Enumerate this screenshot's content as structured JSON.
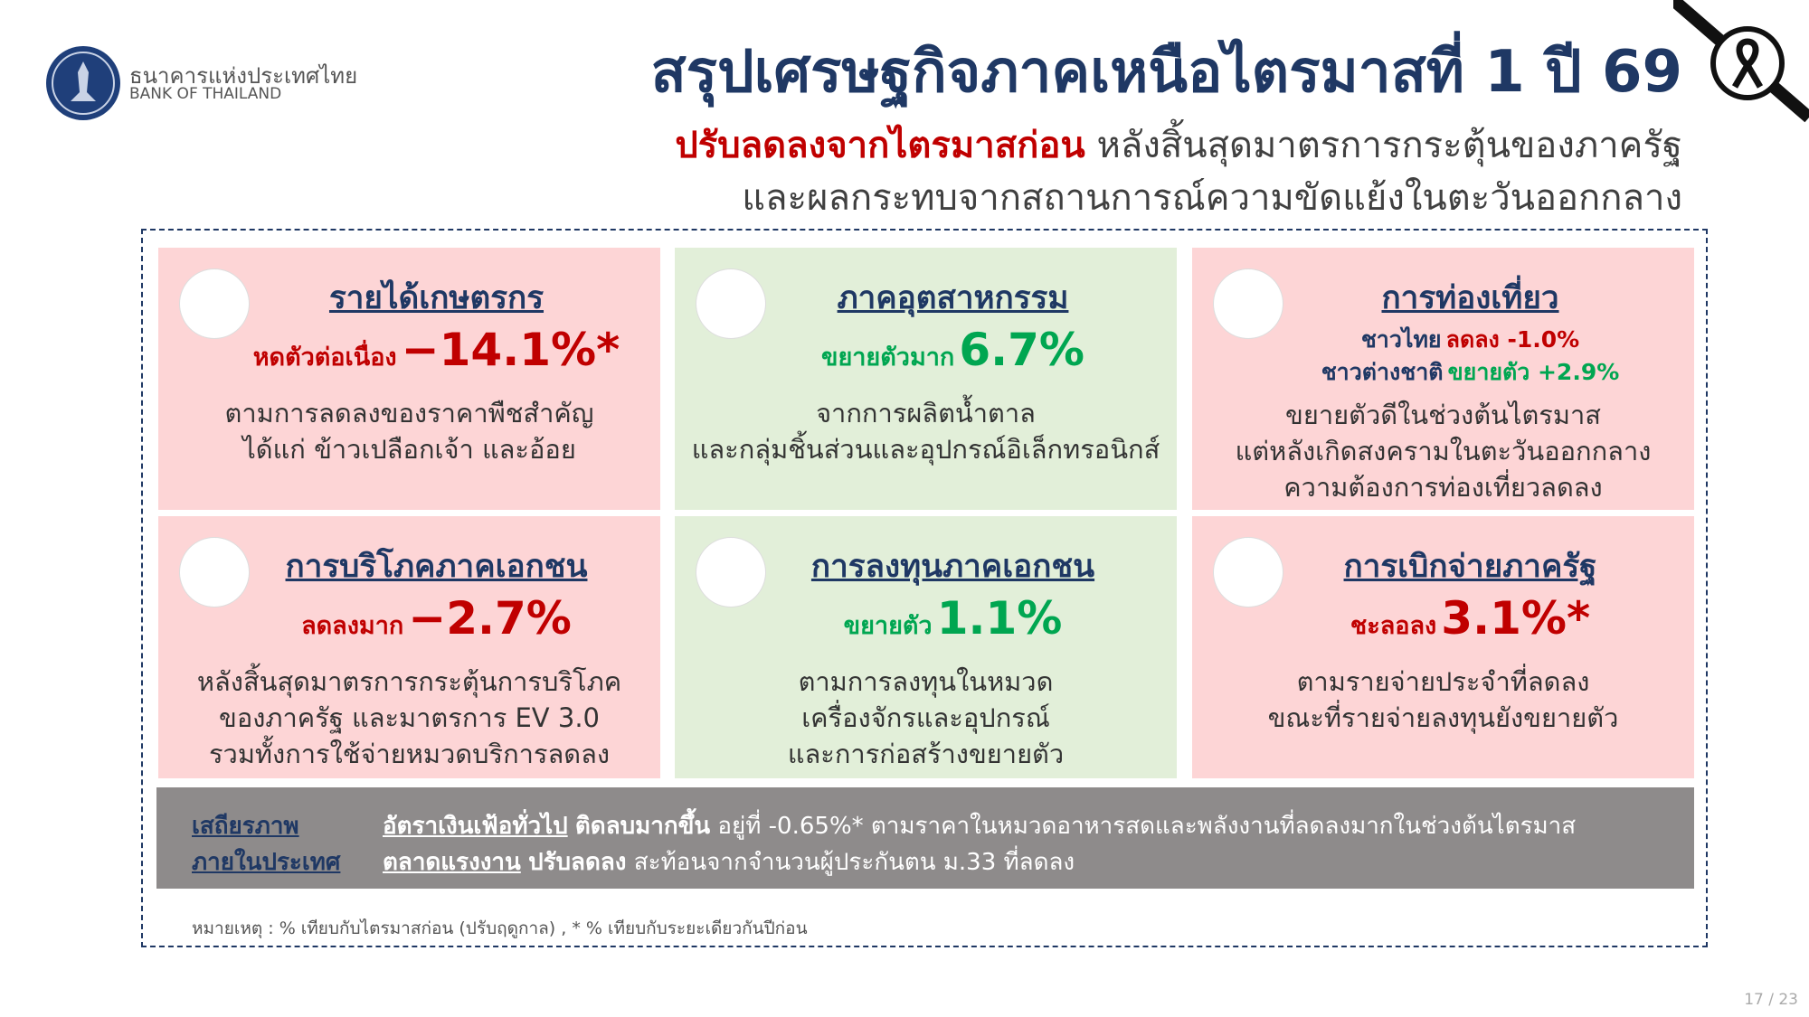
{
  "header": {
    "logo_th": "ธนาคารแห่งประเทศไทย",
    "logo_en": "BANK OF THAILAND",
    "title": "สรุปเศรษฐกิจภาคเหนือไตรมาสที่ 1 ปี 69",
    "subtitle_highlight": "ปรับลดลงจากไตรมาสก่อน",
    "subtitle_rest": "หลังสิ้นสุดมาตรการกระตุ้นของภาครัฐ",
    "subtitle_line2": "และผลกระทบจากสถานการณ์ความขัดแย้งในตะวันออกกลาง"
  },
  "cards": [
    {
      "title": "รายได้เกษตรกร",
      "background": "#fdd5d6",
      "status": [
        {
          "label": "หดตัวต่อเนื่อง",
          "value": "−14.1%*",
          "label_color": "#c00000",
          "color": "#c00000"
        }
      ],
      "description": [
        "ตามการลดลงของราคาพืชสำคัญ",
        "ได้แก่ ข้าวเปลือกเจ้า และอ้อย"
      ]
    },
    {
      "title": "ภาคอุตสาหกรรม",
      "background": "#e2efd9",
      "status": [
        {
          "label": "ขยายตัวมาก",
          "value": "6.7%",
          "label_color": "#00a651",
          "color": "#00a651"
        }
      ],
      "description": [
        "จากการผลิตน้ำตาล",
        "และกลุ่มชิ้นส่วนและอุปกรณ์อิเล็กทรอนิกส์"
      ]
    },
    {
      "title": "การท่องเที่ยว",
      "background": "#fdd5d6",
      "status": [
        {
          "label": "ชาวไทย",
          "value": "ลดลง -1.0%",
          "label_color": "#1f3864",
          "color": "#c00000"
        },
        {
          "label": "ชาวต่างชาติ",
          "value": "ขยายตัว +2.9%",
          "label_color": "#1f3864",
          "color": "#00a651"
        }
      ],
      "description": [
        "ขยายตัวดีในช่วงต้นไตรมาส",
        "แต่หลังเกิดสงครามในตะวันออกกลาง",
        "ความต้องการท่องเที่ยวลดลง"
      ]
    },
    {
      "title": "การบริโภคภาคเอกชน",
      "background": "#fdd5d6",
      "status": [
        {
          "label": "ลดลงมาก",
          "value": "−2.7%",
          "label_color": "#c00000",
          "color": "#c00000"
        }
      ],
      "description": [
        "หลังสิ้นสุดมาตรการกระตุ้นการบริโภค",
        "ของภาครัฐ และมาตรการ EV 3.0",
        "รวมทั้งการใช้จ่ายหมวดบริการลดลง"
      ]
    },
    {
      "title": "การลงทุนภาคเอกชน",
      "background": "#e2efd9",
      "status": [
        {
          "label": "ขยายตัว",
          "value": "1.1%",
          "label_color": "#00a651",
          "color": "#00a651"
        }
      ],
      "description": [
        "ตามการลงทุนในหมวด",
        "เครื่องจักรและอุปกรณ์",
        "และการก่อสร้างขยายตัว"
      ]
    },
    {
      "title": "การเบิกจ่ายภาครัฐ",
      "background": "#fdd5d6",
      "status": [
        {
          "label": "ชะลอลง",
          "value": "3.1%*",
          "label_color": "#c00000",
          "color": "#c00000"
        }
      ],
      "description": [
        "ตามรายจ่ายประจำที่ลดลง",
        "ขณะที่รายจ่ายลงทุนยังขยายตัว"
      ]
    }
  ],
  "stability": {
    "label": [
      "เสถียรภาพ",
      "ภายในประเทศ"
    ],
    "rows": [
      {
        "topic": "อัตราเงินเฟ้อทั่วไป",
        "status": "ติดลบมากขึ้น",
        "detail": "อยู่ที่ -0.65%* ตามราคาในหมวดอาหารสดและพลังงานที่ลดลงมากในช่วงต้นไตรมาส"
      },
      {
        "topic": "ตลาดแรงงาน",
        "status": "ปรับลดลง",
        "detail": "สะท้อนจากจำนวนผู้ประกันตน ม.33 ที่ลดลง"
      }
    ]
  },
  "note": "หมายเหตุ : % เทียบกับไตรมาสก่อน (ปรับฤดูกาล) , * % เทียบกับระยะเดียวกันปีก่อน",
  "page_number": "17 / 23"
}
